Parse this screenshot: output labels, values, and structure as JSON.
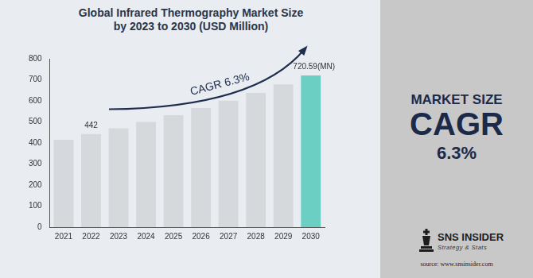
{
  "chart_data": {
    "type": "bar",
    "title": "Global Infrared Thermography Market Size by 2023 to 2030 (USD Million)",
    "categories": [
      "2021",
      "2022",
      "2023",
      "2024",
      "2025",
      "2026",
      "2027",
      "2028",
      "2029",
      "2030"
    ],
    "values": [
      415,
      442,
      470,
      500,
      532,
      566,
      601,
      638,
      678,
      720.59
    ],
    "colors": [
      "#d6d9dc",
      "#d6d9dc",
      "#d6d9dc",
      "#d6d9dc",
      "#d6d9dc",
      "#d6d9dc",
      "#d6d9dc",
      "#d6d9dc",
      "#d6d9dc",
      "#6ccfc3"
    ],
    "ylim": [
      0,
      800
    ],
    "yticks": [
      0,
      100,
      200,
      300,
      400,
      500,
      600,
      700,
      800
    ],
    "grid": false,
    "data_labels": true,
    "value_labels": [
      null,
      "442",
      null,
      null,
      null,
      null,
      null,
      null,
      null,
      "720.59(MN)"
    ],
    "annotations": [
      "CAGR 6.3%"
    ]
  },
  "side_panel": {
    "heading": "MARKET SIZE",
    "metric": "CAGR",
    "value": "6.3%",
    "brand": "SNS INSIDER",
    "tagline": "Strategy & Stats",
    "source": "source: www.snsinsider.com"
  }
}
